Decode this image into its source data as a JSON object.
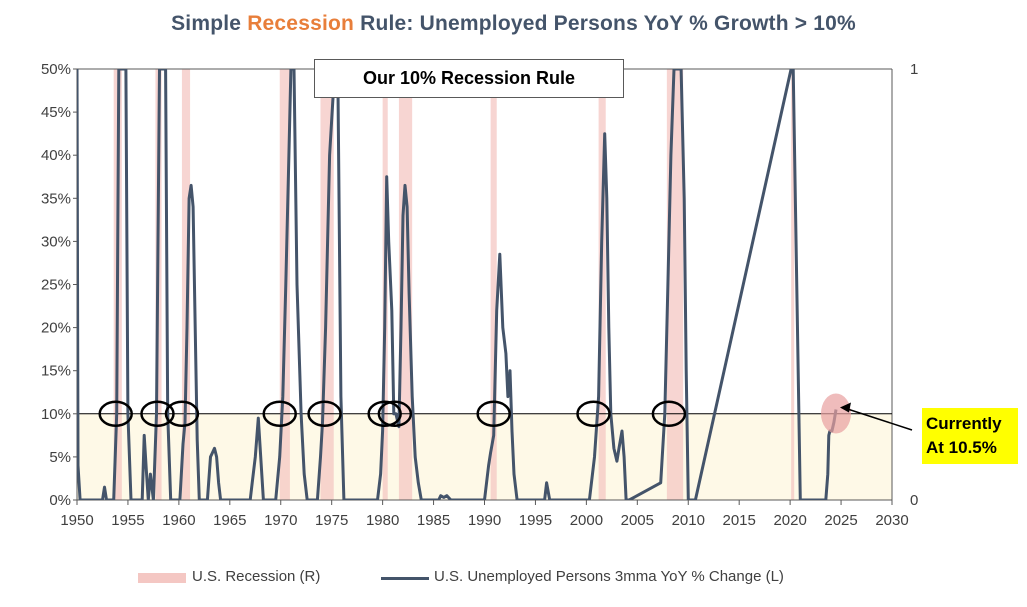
{
  "title": {
    "prefix": "Simple ",
    "highlight": "Recession",
    "suffix": " Rule: Unemployed Persons YoY % Growth > 10%"
  },
  "annotations": {
    "rule_box": "Our 10% Recession Rule",
    "current_line1": "Currently",
    "current_line2": "At 10.5%"
  },
  "legend": {
    "recession": "U.S. Recession (R)",
    "series": "U.S. Unemployed Persons 3mma YoY % Change (L)"
  },
  "colors": {
    "series": "#44546a",
    "recession_band": "#f4c7c3",
    "below_threshold_fill": "#fef9e7",
    "highlight": "#e87e3a",
    "callout_bg": "#ffff00",
    "current_marker": "#e8a0a0"
  },
  "chart_data": {
    "type": "line",
    "title": "Simple Recession Rule: Unemployed Persons YoY % Growth > 10%",
    "xlim": [
      1950,
      2030
    ],
    "ylim": [
      0,
      50
    ],
    "y2lim": [
      0,
      1
    ],
    "x_ticks": [
      1950,
      1955,
      1960,
      1965,
      1970,
      1975,
      1980,
      1985,
      1990,
      1995,
      2000,
      2005,
      2010,
      2015,
      2020,
      2025,
      2030
    ],
    "y_ticks": [
      0,
      5,
      10,
      15,
      20,
      25,
      30,
      35,
      40,
      45,
      50
    ],
    "y_tick_labels": [
      "0%",
      "5%",
      "10%",
      "15%",
      "20%",
      "25%",
      "30%",
      "35%",
      "40%",
      "45%",
      "50%"
    ],
    "y2_ticks": [
      0,
      1
    ],
    "y2_tick_labels": [
      "0",
      "1"
    ],
    "threshold": 10,
    "recessions": [
      [
        1953.6,
        1954.4
      ],
      [
        1957.7,
        1958.3
      ],
      [
        1960.3,
        1961.1
      ],
      [
        1969.9,
        1970.9
      ],
      [
        1973.9,
        1975.2
      ],
      [
        1980.0,
        1980.5
      ],
      [
        1981.6,
        1982.9
      ],
      [
        1990.6,
        1991.2
      ],
      [
        2001.2,
        2001.9
      ],
      [
        2007.9,
        2009.5
      ],
      [
        2020.1,
        2020.4
      ]
    ],
    "circled_crossings": [
      1953.8,
      1957.9,
      1960.3,
      1969.9,
      1974.3,
      1980.2,
      1981.2,
      1990.9,
      2000.7,
      2008.1
    ],
    "current_marker": {
      "x": 2024.5,
      "y": 10.5
    },
    "series": [
      {
        "name": "U.S. Unemployed Persons 3mma YoY % Change (L)",
        "x": [
          1950.0,
          1950.1,
          1950.3,
          1952.5,
          1952.7,
          1952.9,
          1953.6,
          1953.9,
          1954.1,
          1954.8,
          1955.0,
          1955.3,
          1956.4,
          1956.6,
          1956.8,
          1957.0,
          1957.2,
          1957.5,
          1957.8,
          1958.1,
          1958.7,
          1958.9,
          1959.2,
          1960.1,
          1960.4,
          1960.6,
          1960.8,
          1961.0,
          1961.2,
          1961.4,
          1961.6,
          1961.8,
          1962.0,
          1962.3,
          1962.8,
          1963.1,
          1963.3,
          1963.5,
          1963.7,
          1963.9,
          1964.1,
          1966.0,
          1966.6,
          1967.0,
          1967.2,
          1967.5,
          1967.8,
          1968.3,
          1969.5,
          1969.9,
          1970.2,
          1970.5,
          1970.8,
          1971.0,
          1971.3,
          1971.6,
          1972.0,
          1972.3,
          1972.6,
          1972.8,
          1973.6,
          1973.9,
          1974.1,
          1974.4,
          1974.8,
          1975.3,
          1975.6,
          1975.9,
          1976.2,
          1979.5,
          1979.8,
          1980.0,
          1980.2,
          1980.4,
          1980.6,
          1980.9,
          1981.1,
          1981.3,
          1981.6,
          1981.8,
          1982.0,
          1982.2,
          1982.4,
          1982.6,
          1982.9,
          1983.2,
          1983.5,
          1983.8,
          1984.0,
          1984.3,
          1985.5,
          1985.7,
          1986.0,
          1986.3,
          1986.7,
          1987.0,
          1989.6,
          1990.0,
          1990.4,
          1990.6,
          1990.9,
          1991.2,
          1991.5,
          1991.8,
          1992.1,
          1992.3,
          1992.5,
          1992.7,
          1992.9,
          1993.2,
          1995.9,
          1996.1,
          1996.4,
          1999.8,
          2000.3,
          2000.8,
          2001.2,
          2001.5,
          2001.8,
          2002.0,
          2002.2,
          2002.4,
          2002.7,
          2003.0,
          2003.2,
          2003.5,
          2003.7,
          2003.9,
          2004.2,
          2007.3,
          2007.7,
          2008.0,
          2008.3,
          2008.6,
          2008.9,
          2009.3,
          2009.6,
          2009.8,
          2010.0,
          2010.4,
          2010.7,
          2020.1,
          2020.3,
          2021.0,
          2021.3,
          2023.5,
          2023.7,
          2023.8,
          2023.9,
          2024.1,
          2024.3,
          2024.5
        ],
        "values": [
          50,
          4,
          0,
          0,
          1.5,
          0,
          0,
          10,
          50,
          50,
          10,
          0,
          0,
          7.5,
          3.5,
          0,
          3,
          0,
          10,
          50,
          50,
          10,
          0,
          0,
          6.5,
          9,
          20,
          35,
          36.5,
          34,
          20,
          7,
          0,
          0,
          0,
          5,
          5.5,
          6,
          5,
          2,
          0,
          0,
          0,
          0,
          2,
          5,
          9.5,
          0,
          0,
          5,
          12,
          25,
          40,
          50,
          50,
          25,
          10,
          3,
          0,
          0,
          0,
          5,
          9,
          20,
          40,
          50,
          50,
          12,
          0,
          0,
          3,
          8,
          20,
          37.5,
          30,
          22,
          10,
          10,
          8.5,
          20,
          33,
          36.5,
          34,
          24,
          12,
          5,
          2,
          0,
          0,
          0,
          0,
          0.5,
          0.3,
          0.5,
          0,
          0,
          0,
          0,
          4,
          5.5,
          7.5,
          22,
          28.5,
          20,
          17,
          12,
          15,
          8,
          3,
          0,
          0,
          2,
          0,
          0,
          0,
          5,
          12,
          30,
          42.5,
          35,
          20,
          10,
          6,
          4.5,
          6,
          8,
          5,
          0,
          0,
          2,
          10,
          25,
          40,
          50,
          50,
          50,
          35,
          15,
          0,
          0,
          0,
          50,
          50,
          0,
          0,
          0,
          3,
          7.5,
          8,
          8,
          9,
          10.5
        ]
      }
    ]
  }
}
